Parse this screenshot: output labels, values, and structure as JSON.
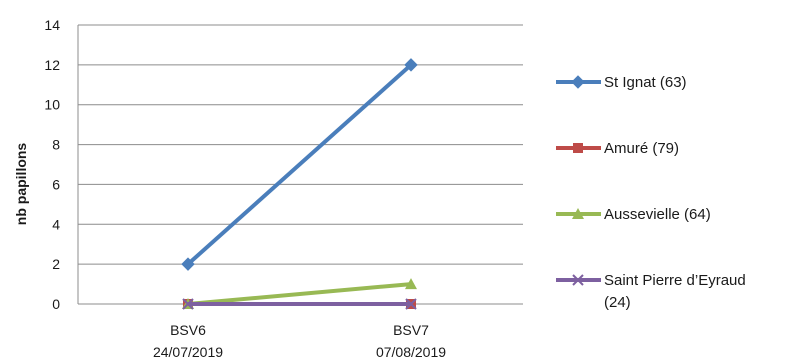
{
  "chart_data": {
    "type": "line",
    "title": "",
    "xlabel": "",
    "ylabel": "nb papillons",
    "ylim": [
      0,
      14
    ],
    "yticks": [
      0,
      2,
      4,
      6,
      8,
      10,
      12,
      14
    ],
    "grid": "horizontal",
    "legend_position": "right",
    "categories": [
      {
        "name": "BSV6",
        "date": "24/07/2019"
      },
      {
        "name": "BSV7",
        "date": "07/08/2019"
      }
    ],
    "series": [
      {
        "name": "St Ignat (63)",
        "values": [
          2,
          12
        ],
        "color": "#4A7EBB",
        "marker": "diamond"
      },
      {
        "name": "Amuré (79)",
        "values": [
          0,
          0
        ],
        "color": "#BE4B48",
        "marker": "square"
      },
      {
        "name": "Aussevielle (64)",
        "values": [
          0,
          1
        ],
        "color": "#98B954",
        "marker": "triangle"
      },
      {
        "name": "Saint Pierre d’Eyraud (24)",
        "values": [
          0,
          0
        ],
        "color": "#7D60A0",
        "marker": "x"
      }
    ]
  }
}
